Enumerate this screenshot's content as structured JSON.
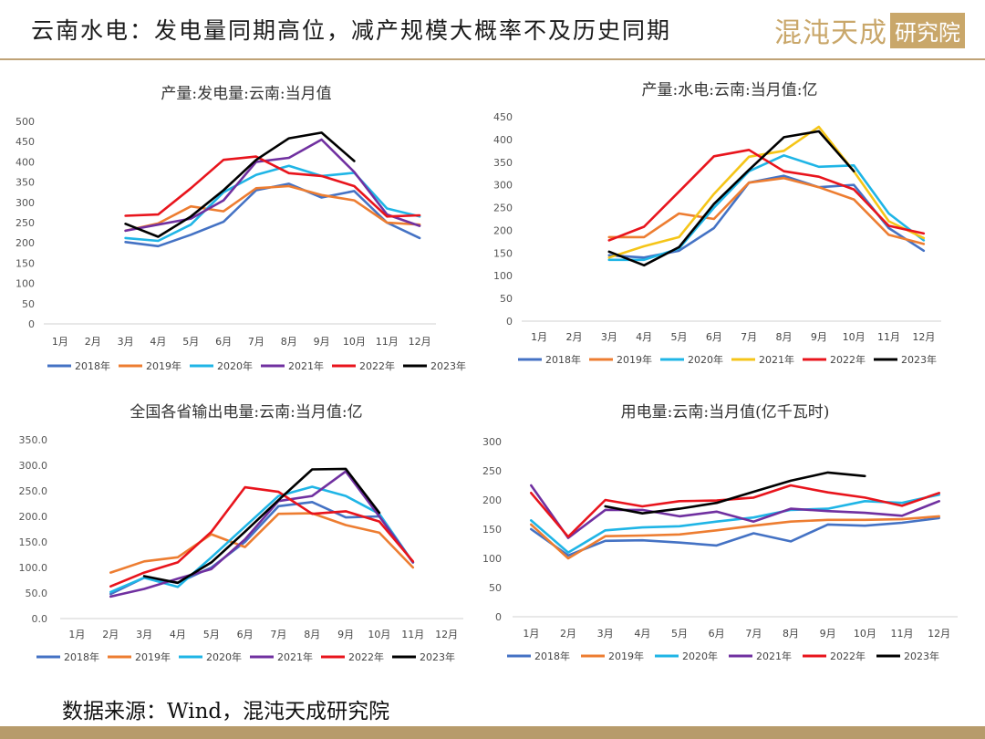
{
  "header": {
    "title": "云南水电：发电量同期高位，减产规模大概率不及历史同期",
    "logo_text": "混沌天成",
    "logo_box": "研究院"
  },
  "footer": {
    "source": "数据来源：Wind，混沌天成研究院"
  },
  "colors": {
    "2018年": "#4472c4",
    "2019年": "#ed7d31",
    "2020年": "#1fb5e6",
    "2021年": "#f5c518",
    "2021年_purple": "#7030a0",
    "2022年": "#e8141c",
    "2023年": "#000000"
  },
  "chart_data": [
    {
      "type": "line",
      "title": "产量:发电量:云南:当月值",
      "categories": [
        "1月",
        "2月",
        "3月",
        "4月",
        "5月",
        "6月",
        "7月",
        "8月",
        "9月",
        "10月",
        "11月",
        "12月"
      ],
      "ylim": [
        0,
        500
      ],
      "yticks": [
        "0",
        "50",
        "100",
        "150",
        "200",
        "250",
        "300",
        "350",
        "400",
        "450",
        "500"
      ],
      "series": [
        {
          "name": "2018年",
          "color": "#4472c4",
          "values": [
            null,
            null,
            202,
            192,
            220,
            252,
            330,
            346,
            312,
            328,
            250,
            212
          ]
        },
        {
          "name": "2019年",
          "color": "#ed7d31",
          "values": [
            null,
            null,
            230,
            248,
            290,
            278,
            335,
            340,
            318,
            305,
            250,
            245
          ]
        },
        {
          "name": "2020年",
          "color": "#1fb5e6",
          "values": [
            null,
            null,
            212,
            205,
            245,
            325,
            368,
            390,
            365,
            373,
            285,
            265
          ]
        },
        {
          "name": "2021年",
          "color": "#7030a0",
          "values": [
            null,
            null,
            230,
            245,
            260,
            305,
            400,
            410,
            455,
            375,
            270,
            242
          ]
        },
        {
          "name": "2022年",
          "color": "#e8141c",
          "values": [
            null,
            null,
            267,
            270,
            335,
            405,
            413,
            372,
            365,
            340,
            265,
            268
          ]
        },
        {
          "name": "2023年",
          "color": "#000000",
          "values": [
            null,
            null,
            247,
            215,
            265,
            330,
            405,
            458,
            472,
            402,
            null,
            null
          ]
        }
      ]
    },
    {
      "type": "line",
      "title": "产量:水电:云南:当月值:亿",
      "categories": [
        "1月",
        "2月",
        "3月",
        "4月",
        "5月",
        "6月",
        "7月",
        "8月",
        "9月",
        "10月",
        "11月",
        "12月"
      ],
      "ylim": [
        0,
        450
      ],
      "yticks": [
        "0",
        "50",
        "100",
        "150",
        "200",
        "250",
        "300",
        "350",
        "400",
        "450"
      ],
      "series": [
        {
          "name": "2018年",
          "color": "#4472c4",
          "values": [
            null,
            null,
            145,
            140,
            155,
            205,
            305,
            320,
            295,
            300,
            205,
            155
          ]
        },
        {
          "name": "2019年",
          "color": "#ed7d31",
          "values": [
            null,
            null,
            185,
            185,
            237,
            225,
            305,
            315,
            295,
            268,
            190,
            170
          ]
        },
        {
          "name": "2020年",
          "color": "#1fb5e6",
          "values": [
            null,
            null,
            135,
            135,
            160,
            250,
            330,
            365,
            340,
            343,
            237,
            178
          ]
        },
        {
          "name": "2021年",
          "color": "#f5c518",
          "values": [
            null,
            null,
            140,
            165,
            185,
            280,
            362,
            375,
            428,
            330,
            220,
            183
          ]
        },
        {
          "name": "2022年",
          "color": "#e8141c",
          "values": [
            null,
            null,
            178,
            208,
            285,
            363,
            377,
            330,
            318,
            290,
            210,
            193
          ]
        },
        {
          "name": "2023年",
          "color": "#000000",
          "values": [
            null,
            null,
            153,
            123,
            163,
            258,
            333,
            405,
            418,
            330,
            null,
            null
          ]
        }
      ]
    },
    {
      "type": "line",
      "title": "全国各省输出电量:云南:当月值:亿",
      "categories": [
        "1月",
        "2月",
        "3月",
        "4月",
        "5月",
        "6月",
        "7月",
        "8月",
        "9月",
        "10月",
        "11月",
        "12月"
      ],
      "ylim": [
        0,
        350
      ],
      "yticks": [
        "0.0",
        "50.0",
        "100.0",
        "150.0",
        "200.0",
        "250.0",
        "300.0",
        "350.0"
      ],
      "series": [
        {
          "name": "2018年",
          "color": "#4472c4",
          "values": [
            null,
            48,
            80,
            70,
            100,
            150,
            220,
            228,
            198,
            200,
            110,
            null
          ]
        },
        {
          "name": "2019年",
          "color": "#ed7d31",
          "values": [
            null,
            90,
            112,
            120,
            165,
            140,
            205,
            206,
            183,
            168,
            100,
            null
          ]
        },
        {
          "name": "2020年",
          "color": "#1fb5e6",
          "values": [
            null,
            52,
            80,
            62,
            120,
            180,
            240,
            258,
            240,
            205,
            110,
            null
          ]
        },
        {
          "name": "2021年",
          "color": "#7030a0",
          "values": [
            null,
            43,
            58,
            78,
            97,
            155,
            230,
            240,
            288,
            200,
            110,
            null
          ]
        },
        {
          "name": "2022年",
          "color": "#e8141c",
          "values": [
            null,
            63,
            90,
            110,
            170,
            257,
            248,
            205,
            210,
            190,
            112,
            null
          ]
        },
        {
          "name": "2023年",
          "color": "#000000",
          "values": [
            null,
            null,
            83,
            70,
            110,
            170,
            232,
            292,
            293,
            207,
            null,
            null
          ]
        }
      ]
    },
    {
      "type": "line",
      "title": "用电量:云南:当月值(亿千瓦时)",
      "categories": [
        "1月",
        "2月",
        "3月",
        "4月",
        "5月",
        "6月",
        "7月",
        "8月",
        "9月",
        "10月",
        "11月",
        "12月"
      ],
      "ylim": [
        0,
        300
      ],
      "yticks": [
        "0",
        "50",
        "100",
        "150",
        "200",
        "250",
        "300"
      ],
      "series": [
        {
          "name": "2018年",
          "color": "#4472c4",
          "values": [
            150,
            105,
            130,
            131,
            127,
            122,
            143,
            129,
            158,
            156,
            161,
            169
          ]
        },
        {
          "name": "2019年",
          "color": "#ed7d31",
          "values": [
            158,
            100,
            138,
            139,
            141,
            148,
            156,
            163,
            166,
            166,
            167,
            172
          ]
        },
        {
          "name": "2020年",
          "color": "#1fb5e6",
          "values": [
            165,
            110,
            148,
            153,
            155,
            163,
            170,
            183,
            185,
            198,
            195,
            209
          ]
        },
        {
          "name": "2021年",
          "color": "#7030a0",
          "values": [
            225,
            135,
            183,
            183,
            172,
            180,
            163,
            185,
            181,
            178,
            173,
            198
          ]
        },
        {
          "name": "2022年",
          "color": "#e8141c",
          "values": [
            212,
            137,
            200,
            189,
            198,
            199,
            204,
            225,
            213,
            204,
            190,
            212
          ]
        },
        {
          "name": "2023年",
          "color": "#000000",
          "values": [
            null,
            null,
            189,
            177,
            185,
            195,
            214,
            233,
            247,
            241,
            null,
            null
          ]
        }
      ]
    }
  ]
}
